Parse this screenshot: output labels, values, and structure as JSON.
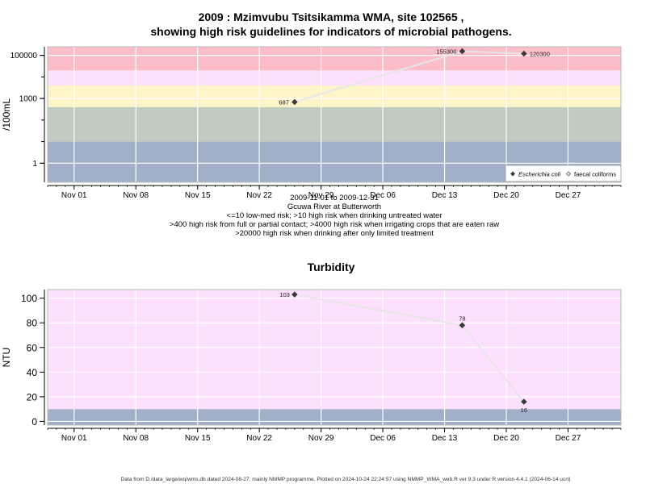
{
  "chart_data": [
    {
      "type": "line",
      "title": "2009 : Mzimvubu Tsitsikamma WMA, site 102565 ,",
      "subtitle": "showing high risk guidelines for indicators of microbial pathogens.",
      "ylabel": "/100mL",
      "yscale": "log",
      "ylim": [
        0.13,
        250000
      ],
      "xlim": [
        "2009-10-29",
        "2010-01-02"
      ],
      "x_ticks": [
        {
          "date": "2009-11-01",
          "label": "Nov 01"
        },
        {
          "date": "2009-11-08",
          "label": "Nov 08"
        },
        {
          "date": "2009-11-15",
          "label": "Nov 15"
        },
        {
          "date": "2009-11-22",
          "label": "Nov 22"
        },
        {
          "date": "2009-11-29",
          "label": "Nov 29"
        },
        {
          "date": "2009-12-06",
          "label": "Dec 06"
        },
        {
          "date": "2009-12-13",
          "label": "Dec 13"
        },
        {
          "date": "2009-12-20",
          "label": "Dec 20"
        },
        {
          "date": "2009-12-27",
          "label": "Dec 27"
        }
      ],
      "y_ticks": [
        {
          "value": 1,
          "label": "1"
        },
        {
          "value": 1000,
          "label": "1000"
        },
        {
          "value": 100000,
          "label": "100000"
        }
      ],
      "bands": [
        {
          "from": 0.13,
          "to": 10,
          "color": "#a1b0c8"
        },
        {
          "from": 10,
          "to": 400,
          "color": "#c2cbc0"
        },
        {
          "from": 400,
          "to": 4000,
          "color": "#fdf4c8"
        },
        {
          "from": 4000,
          "to": 20000,
          "color": "#fce0fd"
        },
        {
          "from": 20000,
          "to": 250000,
          "color": "#fbbdc8"
        }
      ],
      "grid": true,
      "series": [
        {
          "name": "Escherichia coli",
          "marker": "filled-diamond",
          "points": [
            {
              "date": "2009-11-26",
              "value": 687,
              "label": "687"
            },
            {
              "date": "2009-12-15",
              "value": 155300,
              "label": "155300"
            },
            {
              "date": "2009-12-22",
              "value": 120300,
              "label": "120300"
            }
          ]
        },
        {
          "name": "faecal coliforms",
          "marker": "open-diamond",
          "points": []
        }
      ],
      "legend_position": "bottom-right",
      "caption_lines": [
        "2009-11-01 to 2009-12-31",
        "Gcuwa River at Butterworth",
        "<=10 low-med risk; >10 high risk when drinking untreated water",
        ">400 high risk from full or partial contact; >4000 high risk when irrigating crops that are eaten raw",
        ">20000 high risk when drinking after only limited treatment"
      ]
    },
    {
      "type": "line",
      "title": "Turbidity",
      "ylabel": "NTU",
      "yscale": "linear",
      "ylim": [
        -3,
        107
      ],
      "xlim": [
        "2009-10-29",
        "2010-01-02"
      ],
      "x_ticks": [
        {
          "date": "2009-11-01",
          "label": "Nov 01"
        },
        {
          "date": "2009-11-08",
          "label": "Nov 08"
        },
        {
          "date": "2009-11-15",
          "label": "Nov 15"
        },
        {
          "date": "2009-11-22",
          "label": "Nov 22"
        },
        {
          "date": "2009-11-29",
          "label": "Nov 29"
        },
        {
          "date": "2009-12-06",
          "label": "Dec 06"
        },
        {
          "date": "2009-12-13",
          "label": "Dec 13"
        },
        {
          "date": "2009-12-20",
          "label": "Dec 20"
        },
        {
          "date": "2009-12-27",
          "label": "Dec 27"
        }
      ],
      "y_ticks": [
        {
          "value": 0,
          "label": "0"
        },
        {
          "value": 20,
          "label": "20"
        },
        {
          "value": 40,
          "label": "40"
        },
        {
          "value": 60,
          "label": "60"
        },
        {
          "value": 80,
          "label": "80"
        },
        {
          "value": 100,
          "label": "100"
        }
      ],
      "bands": [
        {
          "from": -3,
          "to": 10,
          "color": "#a1b0c8"
        },
        {
          "from": 10,
          "to": 107,
          "color": "#fce0fd"
        }
      ],
      "grid": true,
      "series": [
        {
          "marker": "filled-diamond",
          "points": [
            {
              "date": "2009-11-26",
              "value": 103,
              "label": "103"
            },
            {
              "date": "2009-12-15",
              "value": 78,
              "label": "78"
            },
            {
              "date": "2009-12-22",
              "value": 16,
              "label": "16"
            }
          ]
        }
      ]
    }
  ],
  "footer": "Data from D:/data_large/wq/wms.db dated 2024-08-27, mainly NMMP programme. Plotted on 2024-10-24 22:24:57 using NMMP_WMA_web.R ver 9.3 under R version 4.4.1 (2024-06-14 ucrt)"
}
